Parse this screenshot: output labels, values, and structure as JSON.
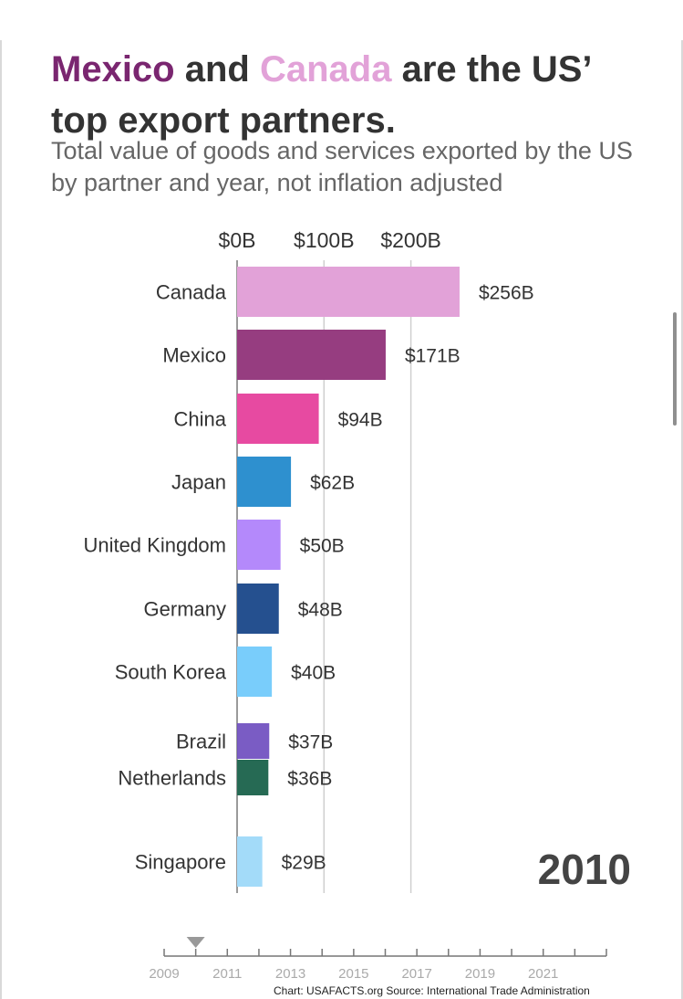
{
  "headline": {
    "part1": "Mexico",
    "part2": " and ",
    "part3": "Canada",
    "part4": " are the US’ top export partners."
  },
  "subtitle": "Total value of goods and services exported by the US by partner and year, not inflation adjusted",
  "chart_data": {
    "type": "bar",
    "orientation": "horizontal",
    "title": "Mexico and Canada are the US’ top export partners.",
    "subtitle": "Total value of goods and services exported by the US by partner and year, not inflation adjusted",
    "x_ticks": [
      "$0B",
      "$100B",
      "$200B"
    ],
    "x_tick_values": [
      0,
      100,
      200
    ],
    "categories": [
      "Canada",
      "Mexico",
      "China",
      "Japan",
      "United Kingdom",
      "Germany",
      "South Korea",
      "Brazil",
      "Netherlands",
      "Singapore"
    ],
    "values": [
      256,
      171,
      94,
      62,
      50,
      48,
      40,
      37,
      36,
      29
    ],
    "value_labels": [
      "$256B",
      "$171B",
      "$94B",
      "$62B",
      "$50B",
      "$48B",
      "$40B",
      "$37B",
      "$36B",
      "$29B"
    ],
    "colors": [
      "#e2a2d8",
      "#963d80",
      "#e74aa1",
      "#2e90cf",
      "#b489fb",
      "#25508f",
      "#79cdfb",
      "#6f4ebf",
      "#266a54",
      "#a3dbf9"
    ],
    "unit": "billions USD",
    "year": "2010",
    "grid": true
  },
  "timeline": {
    "years": [
      "2009",
      "2011",
      "2013",
      "2015",
      "2017",
      "2019",
      "2021"
    ],
    "current_year": 2010,
    "start_year": 2009,
    "end_year": 2023
  },
  "source": "Chart: USAFACTS.org Source: International Trade Administration"
}
